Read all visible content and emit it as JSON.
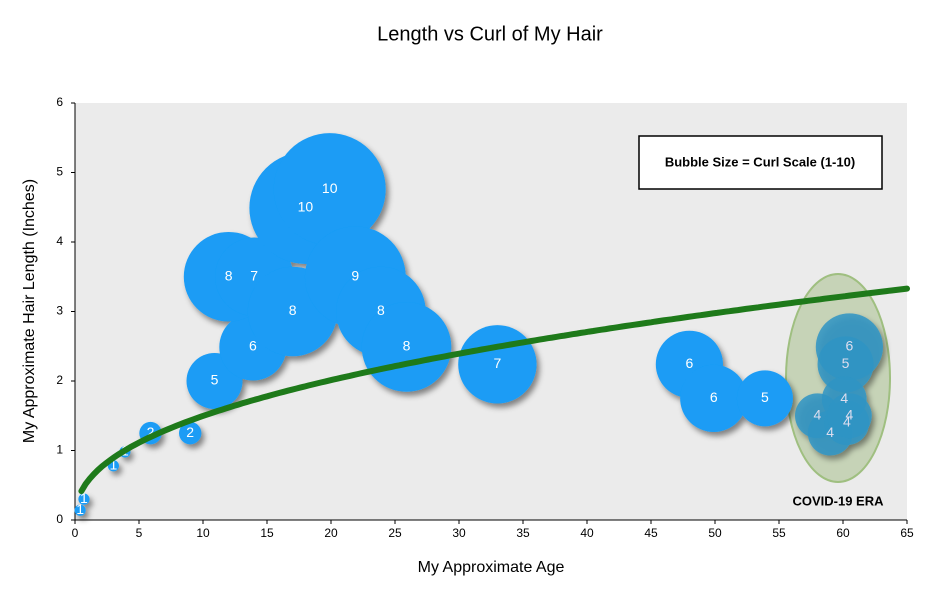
{
  "chart_data": {
    "type": "bubble",
    "title": "Length vs Curl of My Hair",
    "x_label": "My Approximate Age",
    "y_label": "My Approximate Hair Length (Inches)",
    "size_note": "Bubble Size = Curl Scale (1-10)",
    "annotation": "COVID-19 ERA",
    "xlim": [
      0,
      65
    ],
    "xticks": [
      0,
      5,
      10,
      15,
      20,
      25,
      30,
      35,
      40,
      45,
      50,
      55,
      60,
      65
    ],
    "ylim": [
      0,
      6
    ],
    "yticks": [
      0,
      1,
      2,
      3,
      4,
      5,
      6
    ],
    "series": [
      {
        "color": "#1a9cf5",
        "x": [
          0.4,
          0.7,
          3,
          3.9,
          5.9,
          9,
          10.9,
          13.9,
          12,
          14,
          17,
          18,
          19.9,
          21.9,
          23.9,
          25.9,
          33,
          48,
          49.9,
          53.9
        ],
        "values": [
          0.14,
          0.3,
          0.78,
          0.98,
          1.25,
          1.25,
          2.0,
          2.49,
          3.5,
          3.5,
          3.0,
          4.49,
          4.76,
          3.5,
          3.0,
          2.49,
          2.24,
          2.24,
          1.75,
          1.75
        ],
        "sizes": [
          1,
          1,
          1,
          1,
          2,
          2,
          5,
          6,
          8,
          7,
          8,
          10,
          10,
          9,
          8,
          8,
          7,
          6,
          6,
          5
        ]
      },
      {
        "color": "#2e94c4",
        "x": [
          60.5,
          60.2,
          60.1,
          58,
          59,
          60.3,
          60.5
        ],
        "values": [
          2.49,
          2.24,
          1.74,
          1.5,
          1.25,
          1.4,
          1.5
        ],
        "sizes": [
          6,
          5,
          4,
          4,
          4,
          4,
          4
        ]
      }
    ],
    "trendline": {
      "type": "power",
      "coefficient": 0.56,
      "exponent": 0.427,
      "xlim": [
        0.5,
        65
      ],
      "color": "#1e7a1a"
    }
  }
}
